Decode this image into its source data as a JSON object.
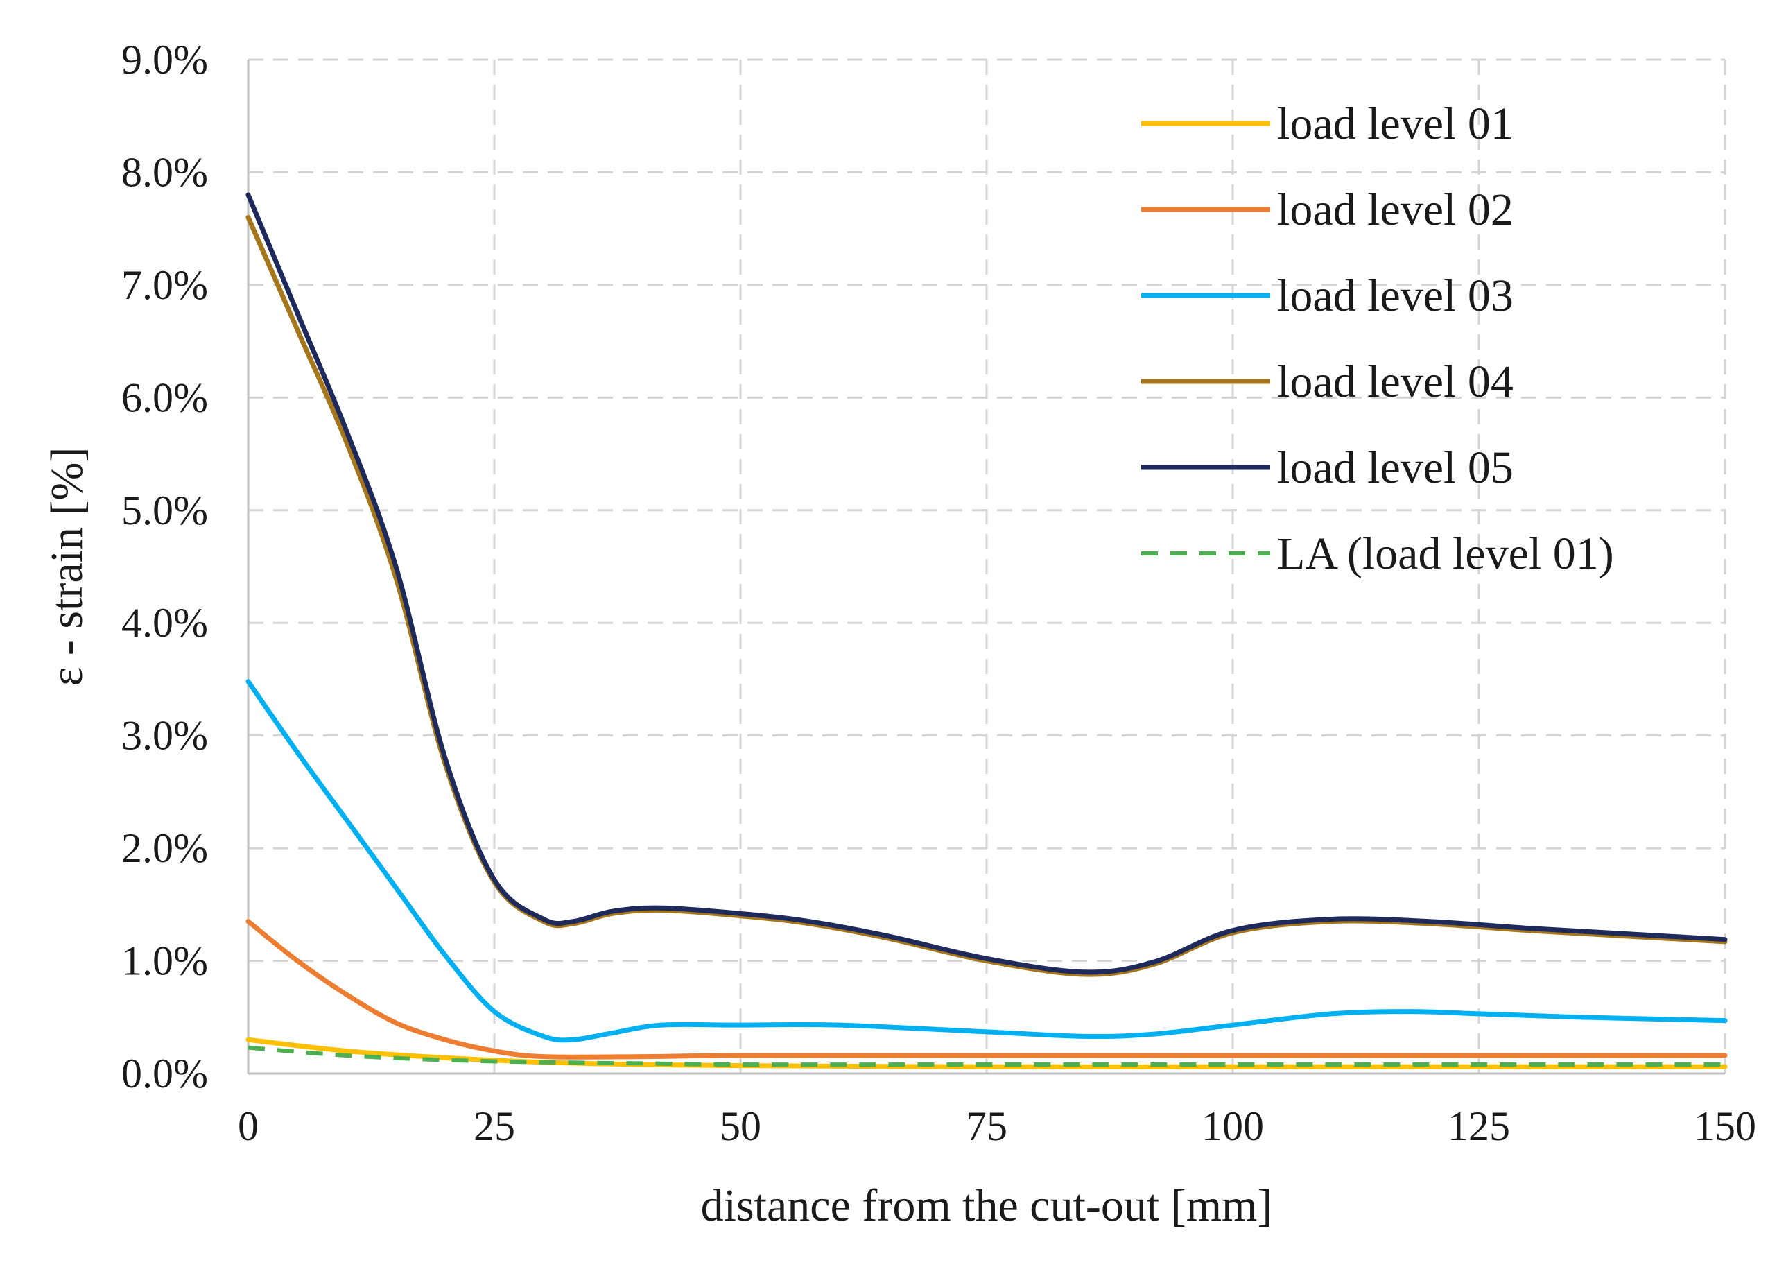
{
  "chart_data": {
    "type": "line",
    "title": "",
    "xlabel": "distance from the cut-out [mm]",
    "ylabel": "ε - strain [%]",
    "xlim": [
      0,
      150
    ],
    "ylim": [
      0,
      9
    ],
    "x_ticks": [
      0,
      25,
      50,
      75,
      100,
      125,
      150
    ],
    "x_tick_labels": [
      "0",
      "25",
      "50",
      "75",
      "100",
      "125",
      "150"
    ],
    "y_ticks": [
      0,
      1,
      2,
      3,
      4,
      5,
      6,
      7,
      8,
      9
    ],
    "y_tick_labels": [
      "0.0%",
      "1.0%",
      "2.0%",
      "3.0%",
      "4.0%",
      "5.0%",
      "6.0%",
      "7.0%",
      "8.0%",
      "9.0%"
    ],
    "grid": true,
    "legend_position": "top-right",
    "series": [
      {
        "name": "load level 01",
        "color": "#FFC000",
        "dashed": false,
        "x": [
          0,
          10,
          20,
          30,
          40,
          50,
          75,
          100,
          125,
          150
        ],
        "values": [
          0.3,
          0.2,
          0.14,
          0.1,
          0.08,
          0.07,
          0.06,
          0.06,
          0.06,
          0.06
        ]
      },
      {
        "name": "load level 02",
        "color": "#ED7D31",
        "dashed": false,
        "x": [
          0,
          5,
          10,
          15,
          20,
          25,
          30,
          40,
          50,
          75,
          100,
          125,
          150
        ],
        "values": [
          1.35,
          1.0,
          0.7,
          0.45,
          0.3,
          0.2,
          0.15,
          0.15,
          0.16,
          0.16,
          0.16,
          0.16,
          0.16
        ]
      },
      {
        "name": "load level 03",
        "color": "#00B0F0",
        "dashed": false,
        "x": [
          0,
          5,
          10,
          15,
          20,
          25,
          30,
          33,
          37,
          42,
          50,
          60,
          75,
          85,
          92,
          100,
          110,
          118,
          125,
          135,
          150
        ],
        "values": [
          3.48,
          2.85,
          2.25,
          1.65,
          1.05,
          0.55,
          0.33,
          0.3,
          0.36,
          0.43,
          0.43,
          0.43,
          0.37,
          0.33,
          0.35,
          0.43,
          0.53,
          0.55,
          0.53,
          0.5,
          0.47
        ]
      },
      {
        "name": "load level 04",
        "color": "#A5761B",
        "dashed": false,
        "x": [
          0,
          5,
          10,
          15,
          20,
          25,
          30,
          33,
          37,
          42,
          50,
          57,
          65,
          75,
          85,
          92,
          100,
          110,
          120,
          130,
          140,
          150
        ],
        "values": [
          7.6,
          6.6,
          5.6,
          4.4,
          2.75,
          1.7,
          1.35,
          1.33,
          1.42,
          1.45,
          1.4,
          1.33,
          1.2,
          1.0,
          0.88,
          0.97,
          1.25,
          1.35,
          1.33,
          1.27,
          1.22,
          1.17
        ]
      },
      {
        "name": "load level 05",
        "color": "#1F2A5C",
        "dashed": false,
        "x": [
          0,
          5,
          10,
          15,
          20,
          25,
          30,
          33,
          37,
          42,
          50,
          57,
          65,
          75,
          85,
          92,
          100,
          110,
          120,
          130,
          140,
          150
        ],
        "values": [
          7.8,
          6.75,
          5.7,
          4.5,
          2.8,
          1.72,
          1.37,
          1.35,
          1.44,
          1.47,
          1.42,
          1.35,
          1.22,
          1.02,
          0.9,
          0.99,
          1.27,
          1.37,
          1.35,
          1.29,
          1.24,
          1.19
        ]
      },
      {
        "name": "LA (load level 01)",
        "color": "#4CAF50",
        "dashed": true,
        "x": [
          0,
          10,
          20,
          30,
          40,
          50,
          75,
          100,
          125,
          150
        ],
        "values": [
          0.23,
          0.16,
          0.12,
          0.1,
          0.09,
          0.08,
          0.08,
          0.08,
          0.08,
          0.08
        ]
      }
    ]
  }
}
